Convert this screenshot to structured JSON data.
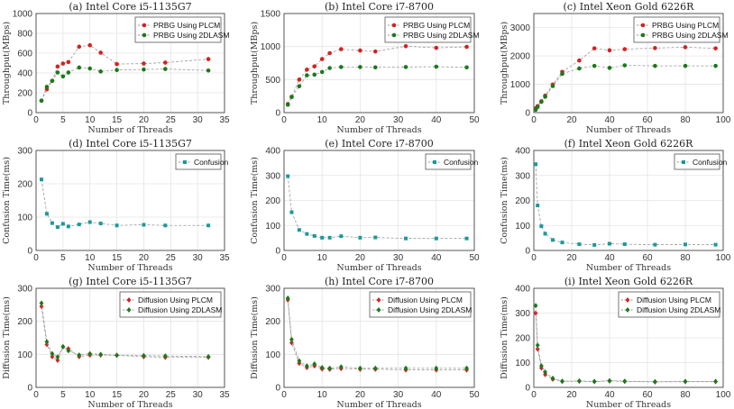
{
  "chart_data": [
    {
      "id": "a",
      "type": "line",
      "title": "(a) Intel Core i5-1135G7",
      "xlabel": "Number of Threads",
      "ylabel": "Throughput(MBps)",
      "xlim": [
        0,
        35
      ],
      "ylim": [
        0,
        1000
      ],
      "xticks": [
        0,
        5,
        10,
        15,
        20,
        25,
        30,
        35
      ],
      "yticks": [
        0,
        200,
        400,
        600,
        800,
        1000
      ],
      "grid": true,
      "legend_position": "top-right",
      "series": [
        {
          "name": "PRBG Using PLCM",
          "color": "#d62020",
          "marker": "circle",
          "x": [
            1,
            2,
            3,
            4,
            5,
            6,
            8,
            10,
            12,
            15,
            20,
            24,
            32
          ],
          "y": [
            120,
            235,
            320,
            465,
            495,
            510,
            665,
            680,
            605,
            490,
            495,
            505,
            540
          ]
        },
        {
          "name": "PRBG Using 2DLASM",
          "color": "#1a7a1a",
          "marker": "circle",
          "x": [
            1,
            2,
            3,
            4,
            5,
            6,
            8,
            10,
            12,
            15,
            20,
            24,
            32
          ],
          "y": [
            120,
            260,
            320,
            405,
            365,
            405,
            455,
            445,
            415,
            430,
            435,
            440,
            425
          ]
        }
      ]
    },
    {
      "id": "b",
      "type": "line",
      "title": "(b) Intel Core i7-8700",
      "xlabel": "Number of Threads",
      "ylabel": "Throughput(MBps)",
      "xlim": [
        0,
        50
      ],
      "ylim": [
        0,
        1500
      ],
      "xticks": [
        0,
        10,
        20,
        30,
        40,
        50
      ],
      "yticks": [
        0,
        500,
        1000,
        1500
      ],
      "grid": true,
      "legend_position": "top-right",
      "series": [
        {
          "name": "PRBG Using PLCM",
          "color": "#d62020",
          "marker": "circle",
          "x": [
            1,
            2,
            4,
            6,
            8,
            10,
            12,
            15,
            20,
            24,
            32,
            40,
            48
          ],
          "y": [
            130,
            240,
            500,
            650,
            700,
            810,
            900,
            960,
            940,
            925,
            1005,
            980,
            995
          ]
        },
        {
          "name": "PRBG Using 2DLASM",
          "color": "#1a7a1a",
          "marker": "circle",
          "x": [
            1,
            2,
            4,
            6,
            8,
            10,
            12,
            15,
            20,
            24,
            32,
            40,
            48
          ],
          "y": [
            120,
            235,
            400,
            565,
            575,
            615,
            675,
            690,
            690,
            685,
            690,
            695,
            685
          ]
        }
      ]
    },
    {
      "id": "c",
      "type": "line",
      "title": "(c) Intel Xeon Gold 6226R",
      "xlabel": "Number of Threads",
      "ylabel": "Throughput(MBps)",
      "xlim": [
        0,
        100
      ],
      "ylim": [
        0,
        3500
      ],
      "xticks": [
        0,
        20,
        40,
        60,
        80,
        100
      ],
      "yticks": [
        0,
        1000,
        2000,
        3000
      ],
      "grid": true,
      "legend_position": "top-right",
      "series": [
        {
          "name": "PRBG Using PLCM",
          "color": "#d62020",
          "marker": "circle",
          "x": [
            1,
            2,
            4,
            6,
            10,
            15,
            24,
            32,
            40,
            48,
            64,
            80,
            96
          ],
          "y": [
            150,
            230,
            400,
            600,
            990,
            1440,
            1840,
            2270,
            2200,
            2240,
            2280,
            2310,
            2270
          ]
        },
        {
          "name": "PRBG Using 2DLASM",
          "color": "#1a7a1a",
          "marker": "circle",
          "x": [
            1,
            2,
            4,
            6,
            10,
            15,
            24,
            32,
            40,
            48,
            64,
            80,
            96
          ],
          "y": [
            100,
            200,
            380,
            560,
            940,
            1370,
            1560,
            1650,
            1580,
            1670,
            1650,
            1650,
            1650
          ]
        }
      ]
    },
    {
      "id": "d",
      "type": "line",
      "title": "(d) Intel Core i5-1135G7",
      "xlabel": "Number of Threads",
      "ylabel": "Confusion Time(ms)",
      "xlim": [
        0,
        35
      ],
      "ylim": [
        0,
        300
      ],
      "xticks": [
        0,
        5,
        10,
        15,
        20,
        25,
        30,
        35
      ],
      "yticks": [
        0,
        100,
        200,
        300
      ],
      "grid": true,
      "legend_position": "top-right",
      "series": [
        {
          "name": "Confusion",
          "color": "#1a9a9a",
          "marker": "square",
          "x": [
            1,
            2,
            3,
            4,
            5,
            6,
            8,
            10,
            12,
            15,
            20,
            24,
            32
          ],
          "y": [
            213,
            110,
            82,
            70,
            80,
            72,
            78,
            85,
            81,
            75,
            77,
            75,
            75
          ]
        }
      ]
    },
    {
      "id": "e",
      "type": "line",
      "title": "(e) Intel Core i7-8700",
      "xlabel": "Number of Threads",
      "ylabel": "Confusion Time(ms)",
      "xlim": [
        0,
        50
      ],
      "ylim": [
        0,
        400
      ],
      "xticks": [
        0,
        10,
        20,
        30,
        40,
        50
      ],
      "yticks": [
        0,
        100,
        200,
        300,
        400
      ],
      "grid": true,
      "legend_position": "top-right",
      "series": [
        {
          "name": "Confusion",
          "color": "#1a9a9a",
          "marker": "square",
          "x": [
            1,
            2,
            4,
            6,
            8,
            10,
            12,
            15,
            20,
            24,
            32,
            40,
            48
          ],
          "y": [
            297,
            153,
            82,
            66,
            58,
            51,
            51,
            57,
            51,
            52,
            48,
            48,
            48
          ]
        }
      ]
    },
    {
      "id": "f",
      "type": "line",
      "title": "(f) Intel Xeon Gold 6226R",
      "xlabel": "Number of Threads",
      "ylabel": "Confusion Time(ms)",
      "xlim": [
        0,
        100
      ],
      "ylim": [
        0,
        400
      ],
      "xticks": [
        0,
        20,
        40,
        60,
        80,
        100
      ],
      "yticks": [
        0,
        100,
        200,
        300,
        400
      ],
      "grid": true,
      "legend_position": "top-right",
      "series": [
        {
          "name": "Confusion",
          "color": "#1a9a9a",
          "marker": "square",
          "x": [
            1,
            2,
            4,
            6,
            10,
            15,
            24,
            32,
            40,
            48,
            64,
            80,
            96
          ],
          "y": [
            345,
            180,
            97,
            67,
            42,
            32,
            25,
            22,
            27,
            25,
            23,
            24,
            23
          ]
        }
      ]
    },
    {
      "id": "g",
      "type": "line",
      "title": "(g) Intel Core i5-1135G7",
      "xlabel": "Number of Threads",
      "ylabel": "Diffusion Time(ms)",
      "xlim": [
        0,
        35
      ],
      "ylim": [
        0,
        300
      ],
      "xticks": [
        0,
        5,
        10,
        15,
        20,
        25,
        30,
        35
      ],
      "yticks": [
        0,
        100,
        200,
        300
      ],
      "grid": true,
      "legend_position": "top-right",
      "series": [
        {
          "name": "Diffusion Using PLCM",
          "color": "#d62020",
          "marker": "diamond",
          "x": [
            1,
            2,
            3,
            4,
            5,
            6,
            8,
            10,
            12,
            15,
            20,
            24,
            32
          ],
          "y": [
            245,
            130,
            93,
            82,
            123,
            117,
            93,
            98,
            98,
            97,
            93,
            91,
            91
          ]
        },
        {
          "name": "Diffusion Using 2DLASM",
          "color": "#1a7a1a",
          "marker": "diamond",
          "x": [
            1,
            2,
            3,
            4,
            5,
            6,
            8,
            10,
            12,
            15,
            20,
            24,
            32
          ],
          "y": [
            255,
            138,
            102,
            92,
            123,
            111,
            98,
            102,
            100,
            97,
            96,
            95,
            93
          ]
        }
      ]
    },
    {
      "id": "h",
      "type": "line",
      "title": "(h) Intel Core i7-8700",
      "xlabel": "Number of Threads",
      "ylabel": "Diffusion Time(ms)",
      "xlim": [
        0,
        50
      ],
      "ylim": [
        0,
        300
      ],
      "xticks": [
        0,
        10,
        20,
        30,
        40,
        50
      ],
      "yticks": [
        0,
        100,
        200,
        300
      ],
      "grid": true,
      "legend_position": "top-right",
      "series": [
        {
          "name": "Diffusion Using PLCM",
          "color": "#d62020",
          "marker": "diamond",
          "x": [
            1,
            2,
            4,
            6,
            8,
            10,
            12,
            15,
            20,
            24,
            32,
            40,
            48
          ],
          "y": [
            265,
            135,
            73,
            60,
            65,
            56,
            55,
            57,
            55,
            55,
            53,
            53,
            53
          ]
        },
        {
          "name": "Diffusion Using 2DLASM",
          "color": "#1a7a1a",
          "marker": "diamond",
          "x": [
            1,
            2,
            4,
            6,
            8,
            10,
            12,
            15,
            20,
            24,
            32,
            40,
            48
          ],
          "y": [
            270,
            145,
            80,
            65,
            71,
            60,
            58,
            62,
            58,
            58,
            58,
            58,
            58
          ]
        }
      ]
    },
    {
      "id": "i",
      "type": "line",
      "title": "(i) Intel Xeon Gold 6226R",
      "xlabel": "Number of Threads",
      "ylabel": "Diffusion Time(ms)",
      "xlim": [
        0,
        100
      ],
      "ylim": [
        0,
        400
      ],
      "xticks": [
        0,
        20,
        40,
        60,
        80,
        100
      ],
      "yticks": [
        0,
        100,
        200,
        300,
        400
      ],
      "grid": true,
      "legend_position": "top-right",
      "series": [
        {
          "name": "Diffusion Using PLCM",
          "color": "#d62020",
          "marker": "diamond",
          "x": [
            1,
            2,
            4,
            6,
            10,
            15,
            24,
            32,
            40,
            48,
            64,
            80,
            96
          ],
          "y": [
            300,
            155,
            78,
            52,
            33,
            24,
            25,
            23,
            26,
            24,
            22,
            23,
            23
          ]
        },
        {
          "name": "Diffusion Using 2DLASM",
          "color": "#1a7a1a",
          "marker": "diamond",
          "x": [
            1,
            2,
            4,
            6,
            10,
            15,
            24,
            32,
            40,
            48,
            64,
            80,
            96
          ],
          "y": [
            330,
            170,
            87,
            62,
            37,
            25,
            26,
            24,
            27,
            25,
            23,
            24,
            24
          ]
        }
      ]
    }
  ]
}
